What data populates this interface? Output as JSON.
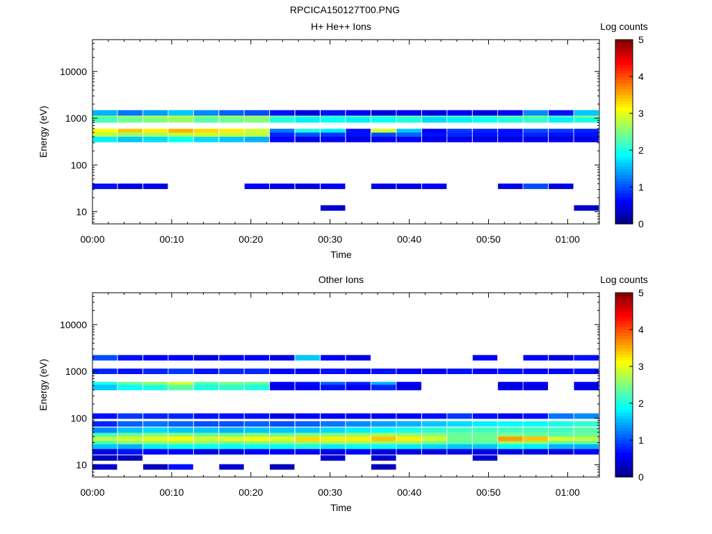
{
  "figure_title": "RPCICA150127T00.PNG",
  "chart_data": [
    {
      "type": "heatmap",
      "title": "H+ He++ Ions",
      "xlabel": "Time",
      "ylabel": "Energy (eV)",
      "x_ticks": [
        "00:00",
        "00:10",
        "00:20",
        "00:30",
        "00:40",
        "00:50",
        "01:00"
      ],
      "x_range_minutes": [
        0,
        64
      ],
      "y_scale": "log",
      "y_range": [
        5.5,
        48000
      ],
      "y_ticks": [
        10,
        100,
        1000,
        10000
      ],
      "y_tick_labels": [
        "10",
        "100",
        "1000",
        "10000"
      ],
      "colorbar": {
        "label": "Log counts",
        "min": 0,
        "max": 5,
        "tick_labels": [
          "0",
          "1",
          "2",
          "3",
          "4",
          "5"
        ]
      },
      "columns_minutes": [
        0,
        3.2,
        6.4,
        9.6,
        12.8,
        16,
        19.2,
        22.4,
        25.6,
        28.8,
        32,
        35.2,
        38.4,
        41.6,
        44.8,
        48,
        51.2,
        54.4,
        57.6,
        60.8
      ],
      "bands": [
        {
          "energy": 1000,
          "values": [
            2.6,
            2.7,
            2.8,
            2.9,
            2.7,
            2.8,
            2.8,
            2.5,
            2.4,
            2.3,
            2.4,
            2.4,
            2.5,
            2.3,
            2.4,
            2.4,
            2.5,
            2.6,
            2.4,
            2.6
          ]
        },
        {
          "energy": 920,
          "values": [
            2.2,
            2.4,
            2.5,
            2.6,
            2.3,
            2.4,
            2.5,
            2.0,
            1.8,
            1.9,
            1.8,
            1.9,
            2.0,
            1.7,
            1.8,
            1.9,
            2.0,
            2.1,
            1.8,
            2.0
          ]
        },
        {
          "energy": 520,
          "values": [
            3.1,
            3.4,
            3.2,
            3.5,
            3.3,
            3.2,
            2.9,
            1.2,
            2.0,
            1.8,
            0.7,
            2.9,
            1.6,
            0.6,
            0.9,
            0.8,
            0.7,
            1.0,
            0.9,
            0.8
          ]
        },
        {
          "energy": 430,
          "values": [
            2.8,
            2.6,
            2.7,
            2.8,
            2.9,
            2.8,
            2.8,
            0.8,
            1.0,
            0.9,
            0.7,
            1.0,
            1.1,
            0.7,
            0.8,
            0.7,
            0.7,
            0.8,
            0.7,
            0.7
          ]
        },
        {
          "energy": 350,
          "values": [
            1.8,
            1.6,
            1.7,
            1.9,
            1.7,
            1.6,
            1.5,
            0.6,
            0.5,
            0.6,
            0.5,
            0.6,
            0.6,
            0.5,
            0.5,
            0.5,
            0.5,
            0.5,
            0.5,
            0.5
          ]
        },
        {
          "energy": 1300,
          "values": [
            1.5,
            1.2,
            1.4,
            1.6,
            1.3,
            1.1,
            1.0,
            0.7,
            0.5,
            0.7,
            0.6,
            0.5,
            0.6,
            0.5,
            0.6,
            0.5,
            0.6,
            1.3,
            0.7,
            1.6
          ]
        },
        {
          "energy": 35,
          "values": [
            0.7,
            0.5,
            0.5,
            0.0,
            0.0,
            0.0,
            0.6,
            0.5,
            0.5,
            0.6,
            0.0,
            0.5,
            0.5,
            0.6,
            0.0,
            0.0,
            0.5,
            1.0,
            0.5,
            0.0
          ]
        },
        {
          "energy": 12,
          "values": [
            0.0,
            0.0,
            0.0,
            0.0,
            0.0,
            0.0,
            0.0,
            0.0,
            0.0,
            0.4,
            0.0,
            0.0,
            0.0,
            0.0,
            0.0,
            0.0,
            0.0,
            0.0,
            0.0,
            0.4
          ]
        }
      ]
    },
    {
      "type": "heatmap",
      "title": "Other Ions",
      "xlabel": "Time",
      "ylabel": "Energy (eV)",
      "x_ticks": [
        "00:00",
        "00:10",
        "00:20",
        "00:30",
        "00:40",
        "00:50",
        "01:00"
      ],
      "x_range_minutes": [
        0,
        64
      ],
      "y_scale": "log",
      "y_range": [
        5.5,
        48000
      ],
      "y_ticks": [
        10,
        100,
        1000,
        10000
      ],
      "y_tick_labels": [
        "10",
        "100",
        "1000",
        "10000"
      ],
      "colorbar": {
        "label": "Log counts",
        "min": 0,
        "max": 5,
        "tick_labels": [
          "0",
          "1",
          "2",
          "3",
          "4",
          "5"
        ]
      },
      "columns_minutes": [
        0,
        3.2,
        6.4,
        9.6,
        12.8,
        16,
        19.2,
        22.4,
        25.6,
        28.8,
        32,
        35.2,
        38.4,
        41.6,
        44.8,
        48,
        51.2,
        54.4,
        57.6,
        60.8
      ],
      "bands": [
        {
          "energy": 1950,
          "values": [
            1.0,
            0.7,
            0.6,
            0.6,
            0.5,
            0.6,
            0.6,
            0.5,
            1.6,
            0.6,
            0.5,
            0.0,
            0.0,
            0.0,
            0.0,
            0.6,
            0.0,
            0.6,
            0.5,
            0.7
          ]
        },
        {
          "energy": 1000,
          "values": [
            0.8,
            0.7,
            0.8,
            0.9,
            0.7,
            0.8,
            0.8,
            0.6,
            0.6,
            0.7,
            0.6,
            0.7,
            0.6,
            0.6,
            0.7,
            0.6,
            0.7,
            0.6,
            0.6,
            0.7
          ]
        },
        {
          "energy": 520,
          "values": [
            2.0,
            2.4,
            2.6,
            2.9,
            2.3,
            2.5,
            2.4,
            0.6,
            0.7,
            1.1,
            0.8,
            1.5,
            0.6,
            0.0,
            0.0,
            0.0,
            0.5,
            0.6,
            0.0,
            0.6
          ]
        },
        {
          "energy": 450,
          "values": [
            1.6,
            1.9,
            2.0,
            2.3,
            2.0,
            2.1,
            2.0,
            0.5,
            0.6,
            0.7,
            0.6,
            0.8,
            0.5,
            0.0,
            0.0,
            0.0,
            0.5,
            0.5,
            0.0,
            0.5
          ]
        },
        {
          "energy": 110,
          "values": [
            0.7,
            0.9,
            0.8,
            0.8,
            0.7,
            0.7,
            0.7,
            0.5,
            0.6,
            0.6,
            0.6,
            0.6,
            0.6,
            0.7,
            0.9,
            0.7,
            0.6,
            0.7,
            1.2,
            1.3
          ]
        },
        {
          "energy": 75,
          "values": [
            0.8,
            1.1,
            1.2,
            1.1,
            1.0,
            1.0,
            1.1,
            1.0,
            1.1,
            1.2,
            1.3,
            1.4,
            1.5,
            1.6,
            1.7,
            1.8,
            1.9,
            1.9,
            2.0,
            2.1
          ]
        },
        {
          "energy": 55,
          "values": [
            1.3,
            1.6,
            1.7,
            1.6,
            1.6,
            1.5,
            1.6,
            1.6,
            1.6,
            1.7,
            1.8,
            1.9,
            2.0,
            2.1,
            2.2,
            2.2,
            2.2,
            2.2,
            2.2,
            2.3
          ]
        },
        {
          "energy": 42,
          "values": [
            2.2,
            2.4,
            2.5,
            2.5,
            2.4,
            2.4,
            2.5,
            2.4,
            2.5,
            2.5,
            2.6,
            2.7,
            2.6,
            2.5,
            2.4,
            2.4,
            2.5,
            2.4,
            2.3,
            2.4
          ]
        },
        {
          "energy": 35,
          "values": [
            2.8,
            2.9,
            3.0,
            3.1,
            2.9,
            3.0,
            3.1,
            3.0,
            3.3,
            3.2,
            3.2,
            3.4,
            3.2,
            2.9,
            2.4,
            2.4,
            3.6,
            3.4,
            2.9,
            2.8
          ]
        },
        {
          "energy": 28,
          "values": [
            2.2,
            2.5,
            2.5,
            2.6,
            2.5,
            2.4,
            2.5,
            2.5,
            2.6,
            2.6,
            2.6,
            2.6,
            2.6,
            2.4,
            2.3,
            2.3,
            2.6,
            2.5,
            2.3,
            2.3
          ]
        },
        {
          "energy": 24,
          "values": [
            1.6,
            1.5,
            1.8,
            1.9,
            1.9,
            1.9,
            1.9,
            1.9,
            2.0,
            1.8,
            1.9,
            1.9,
            1.8,
            1.7,
            1.6,
            1.6,
            1.9,
            1.8,
            1.5,
            1.5
          ]
        },
        {
          "energy": 19,
          "values": [
            0.5,
            0.7,
            0.6,
            0.6,
            0.5,
            0.5,
            0.6,
            0.6,
            0.6,
            0.5,
            0.6,
            0.5,
            0.5,
            0.5,
            0.5,
            0.5,
            0.5,
            0.5,
            0.5,
            0.6
          ]
        },
        {
          "energy": 14,
          "values": [
            0.3,
            0.3,
            0.0,
            0.0,
            0.0,
            0.0,
            0.0,
            0.0,
            0.0,
            0.4,
            0.0,
            0.4,
            0.0,
            0.0,
            0.0,
            0.4,
            0.0,
            0.0,
            0.0,
            0.0
          ]
        },
        {
          "energy": 9,
          "values": [
            0.4,
            0.0,
            0.3,
            0.7,
            0.0,
            0.4,
            0.0,
            0.3,
            0.0,
            0.0,
            0.0,
            0.3,
            0.0,
            0.0,
            0.0,
            0.0,
            0.0,
            0.0,
            0.0,
            0.0
          ]
        }
      ]
    }
  ]
}
